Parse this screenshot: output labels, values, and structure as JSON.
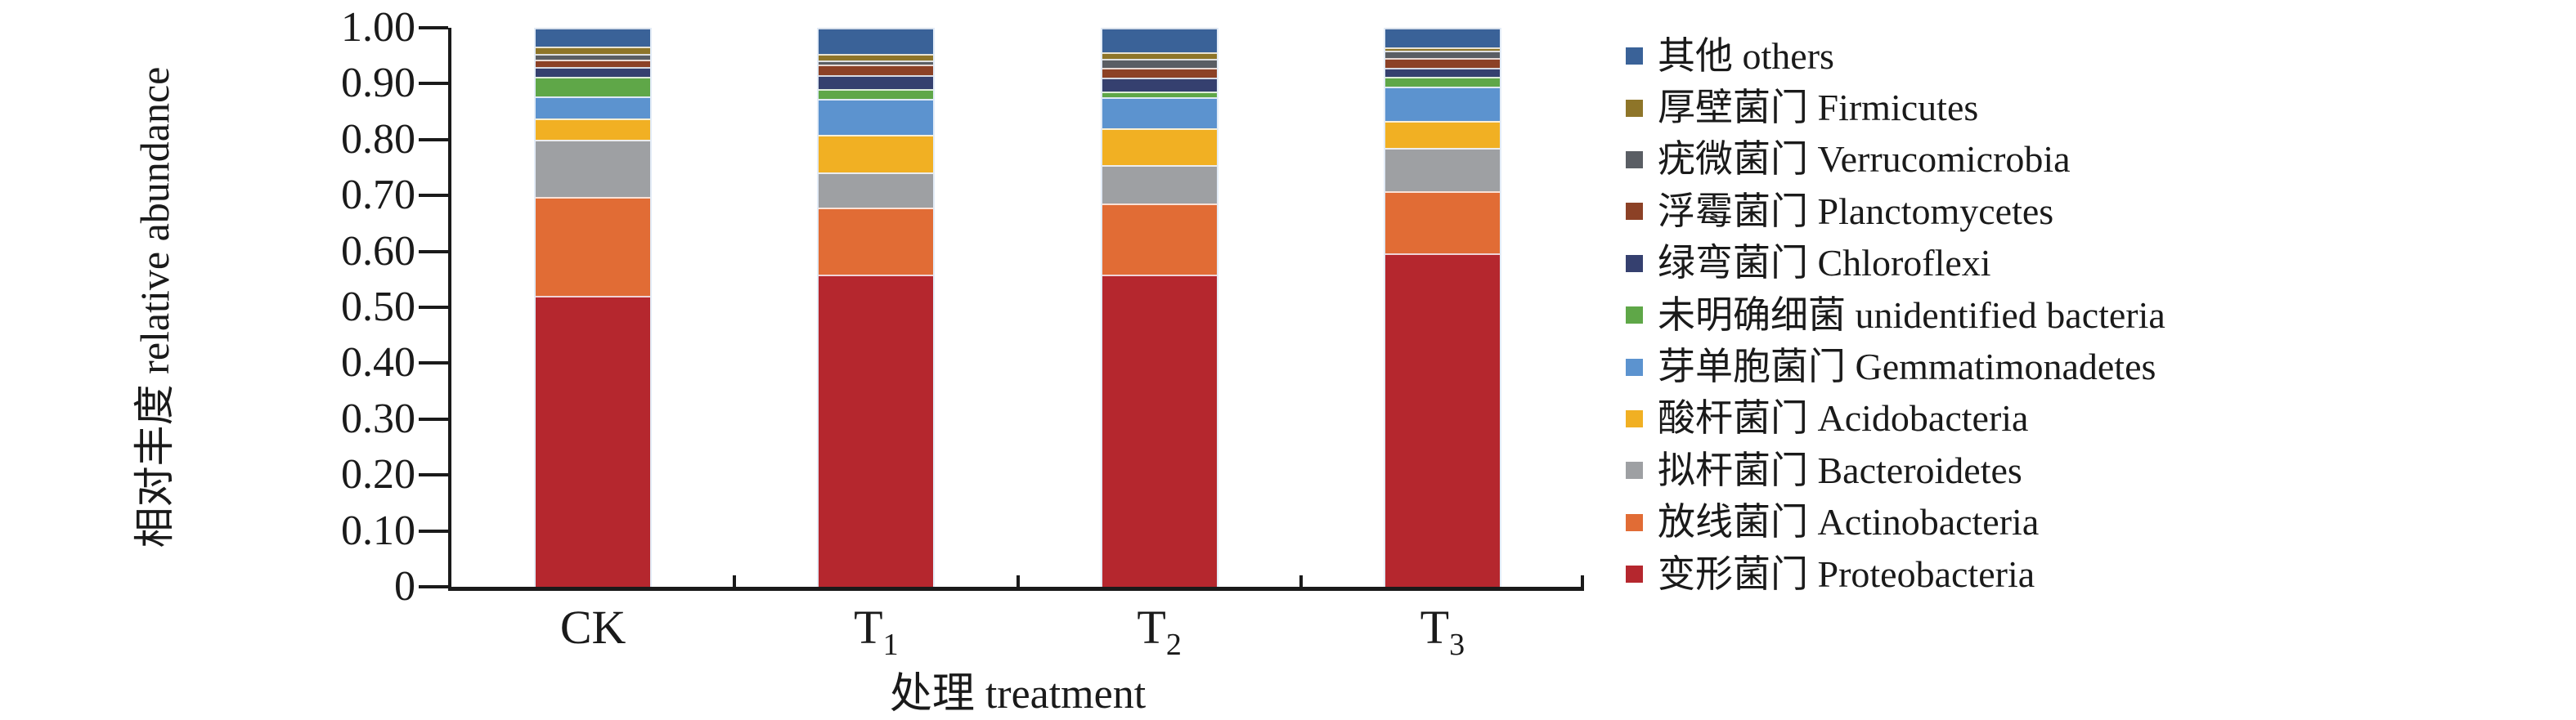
{
  "chart_data": {
    "type": "bar",
    "stacked": true,
    "orientation": "vertical",
    "title": "",
    "xlabel": "处理 treatment",
    "ylabel": "相对丰度 relative abundance",
    "ylim": [
      0,
      1.0
    ],
    "yticks": [
      "1.00",
      "0.90",
      "0.80",
      "0.70",
      "0.60",
      "0.50",
      "0.40",
      "0.30",
      "0.20",
      "0.10",
      "0"
    ],
    "grid": false,
    "legend_position": "right-outside",
    "axis_color": "#1a1a1a",
    "categories": [
      {
        "main": "CK",
        "sub": ""
      },
      {
        "main": "T",
        "sub": "1"
      },
      {
        "main": "T",
        "sub": "2"
      },
      {
        "main": "T",
        "sub": "3"
      }
    ],
    "series_note": "listed bottom-to-top of the stack; legend shows reverse order (top-to-bottom)",
    "series": [
      {
        "name_zh": "变形菌门",
        "name_en": "Proteobacteria",
        "color": "#B5272E",
        "values": [
          0.52,
          0.558,
          0.559,
          0.597
        ]
      },
      {
        "name_zh": "放线菌门",
        "name_en": "Actinobacteria",
        "color": "#E16C35",
        "values": [
          0.178,
          0.121,
          0.127,
          0.11
        ]
      },
      {
        "name_zh": "拟杆菌门",
        "name_en": "Bacteroidetes",
        "color": "#9EA0A3",
        "values": [
          0.102,
          0.063,
          0.068,
          0.078
        ]
      },
      {
        "name_zh": "酸杆菌门",
        "name_en": "Acidobacteria",
        "color": "#F1B023",
        "values": [
          0.038,
          0.066,
          0.066,
          0.049
        ]
      },
      {
        "name_zh": "芽单胞菌门",
        "name_en": "Gemmatimonadetes",
        "color": "#5C93CF",
        "values": [
          0.039,
          0.065,
          0.056,
          0.061
        ]
      },
      {
        "name_zh": "未明确细菌",
        "name_en": "unidentified bacteria",
        "color": "#5FA748",
        "values": [
          0.036,
          0.018,
          0.01,
          0.018
        ]
      },
      {
        "name_zh": "绿弯菌门",
        "name_en": "Chloroflexi",
        "color": "#35406F",
        "values": [
          0.017,
          0.024,
          0.025,
          0.016
        ]
      },
      {
        "name_zh": "浮霉菌门",
        "name_en": "Planctomycetes",
        "color": "#8C4126",
        "values": [
          0.013,
          0.019,
          0.018,
          0.017
        ]
      },
      {
        "name_zh": "疣微菌门",
        "name_en": "Verrucomicrobia",
        "color": "#5A5E64",
        "values": [
          0.011,
          0.007,
          0.016,
          0.013
        ]
      },
      {
        "name_zh": "厚壁菌门",
        "name_en": "Firmicutes",
        "color": "#8E7529",
        "values": [
          0.013,
          0.013,
          0.011,
          0.006
        ]
      },
      {
        "name_zh": "其他",
        "name_en": "others",
        "color": "#3A6298",
        "values": [
          0.033,
          0.046,
          0.044,
          0.035
        ]
      }
    ]
  }
}
